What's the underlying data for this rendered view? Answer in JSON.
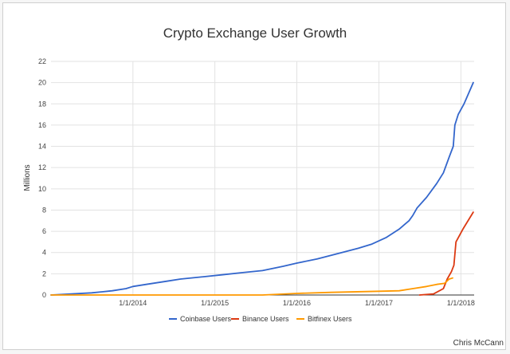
{
  "chart_data": {
    "type": "line",
    "title": "Crypto Exchange User Growth",
    "xlabel": "",
    "ylabel": "Millions",
    "ylim": [
      0,
      22
    ],
    "y_ticks": [
      0,
      2,
      4,
      6,
      8,
      10,
      12,
      14,
      16,
      18,
      20,
      22
    ],
    "x_ticks": [
      "1/1/2014",
      "1/1/2015",
      "1/1/2016",
      "1/1/2017",
      "1/1/2018"
    ],
    "x_range": [
      "2013-01-01",
      "2018-03-01"
    ],
    "grid": true,
    "legend_position": "bottom",
    "credit": "Chris McCann",
    "series": [
      {
        "name": "Coinbase Users",
        "color": "#3366cc",
        "points": [
          [
            "2013-01-01",
            0
          ],
          [
            "2013-04-01",
            0.1
          ],
          [
            "2013-07-01",
            0.2
          ],
          [
            "2013-10-01",
            0.4
          ],
          [
            "2013-12-01",
            0.6
          ],
          [
            "2014-01-01",
            0.8
          ],
          [
            "2014-03-01",
            1.0
          ],
          [
            "2014-06-01",
            1.3
          ],
          [
            "2014-08-01",
            1.5
          ],
          [
            "2014-11-01",
            1.7
          ],
          [
            "2015-02-01",
            1.9
          ],
          [
            "2015-05-01",
            2.1
          ],
          [
            "2015-08-01",
            2.3
          ],
          [
            "2015-11-01",
            2.7
          ],
          [
            "2016-01-01",
            3.0
          ],
          [
            "2016-04-01",
            3.4
          ],
          [
            "2016-07-01",
            3.9
          ],
          [
            "2016-10-01",
            4.4
          ],
          [
            "2016-12-01",
            4.8
          ],
          [
            "2017-02-01",
            5.4
          ],
          [
            "2017-04-01",
            6.2
          ],
          [
            "2017-05-15",
            7.0
          ],
          [
            "2017-06-01",
            7.5
          ],
          [
            "2017-06-20",
            8.2
          ],
          [
            "2017-08-01",
            9.2
          ],
          [
            "2017-09-15",
            10.5
          ],
          [
            "2017-10-15",
            11.5
          ],
          [
            "2017-11-10",
            13.0
          ],
          [
            "2017-11-28",
            14.0
          ],
          [
            "2017-12-05",
            16.0
          ],
          [
            "2017-12-20",
            17.0
          ],
          [
            "2018-01-15",
            18.0
          ],
          [
            "2018-02-25",
            20.0
          ]
        ]
      },
      {
        "name": "Binance Users",
        "color": "#dc3912",
        "points": [
          [
            "2017-07-01",
            0
          ],
          [
            "2017-09-01",
            0.1
          ],
          [
            "2017-10-15",
            0.6
          ],
          [
            "2017-11-01",
            1.5
          ],
          [
            "2017-11-20",
            2.2
          ],
          [
            "2017-12-01",
            2.8
          ],
          [
            "2017-12-10",
            5.0
          ],
          [
            "2018-01-10",
            6.2
          ],
          [
            "2018-02-25",
            7.8
          ]
        ]
      },
      {
        "name": "Bitfinex Users",
        "color": "#ff9900",
        "points": [
          [
            "2013-01-01",
            0
          ],
          [
            "2015-08-01",
            0
          ],
          [
            "2016-01-01",
            0.15
          ],
          [
            "2016-06-01",
            0.25
          ],
          [
            "2017-01-01",
            0.35
          ],
          [
            "2017-04-01",
            0.4
          ],
          [
            "2017-06-01",
            0.6
          ],
          [
            "2017-08-01",
            0.8
          ],
          [
            "2017-09-15",
            1.0
          ],
          [
            "2017-10-20",
            1.1
          ],
          [
            "2017-11-10",
            1.5
          ],
          [
            "2017-11-25",
            1.6
          ]
        ]
      }
    ]
  }
}
